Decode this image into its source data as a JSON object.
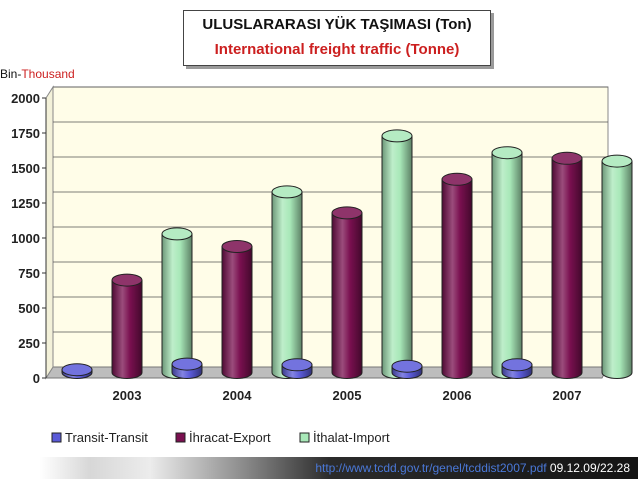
{
  "title": {
    "line1": "ULUSLARARASI YÜK TAŞIMASI (Ton)",
    "line2": "International freight traffic (Tonne)"
  },
  "unit_label": {
    "part1": "Bin-",
    "part2": "Thousand"
  },
  "footer": {
    "url": "http://www.tcdd.gov.tr/genel/tcddist2007.pdf",
    "date": "09.12.09/22.28"
  },
  "chart_data": {
    "type": "bar",
    "categories": [
      "2003",
      "2004",
      "2005",
      "2006",
      "2007"
    ],
    "series": [
      {
        "name": "Transit-Transit",
        "values": [
          20,
          60,
          55,
          45,
          55
        ],
        "color": "#5a5ad8"
      },
      {
        "name": "İhracat-Export",
        "values": [
          660,
          900,
          1140,
          1380,
          1530
        ],
        "color": "#7a1050"
      },
      {
        "name": "İthalat-Import",
        "values": [
          990,
          1290,
          1690,
          1570,
          1510
        ],
        "color": "#a8e8b8"
      }
    ],
    "ylim": [
      0,
      2000
    ],
    "yticks": [
      0,
      250,
      500,
      750,
      1000,
      1250,
      1500,
      1750,
      2000
    ],
    "grid": true,
    "legend_position": "bottom",
    "ylabel": "",
    "xlabel": ""
  }
}
